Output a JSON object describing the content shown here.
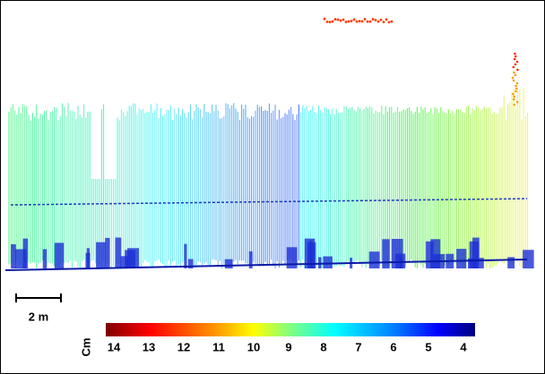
{
  "scale_bar": {
    "label": "2 m"
  },
  "colorbar": {
    "unit": "Cm",
    "ticks": [
      14,
      13,
      12,
      11,
      10,
      9,
      8,
      7,
      6,
      5,
      4
    ]
  }
}
